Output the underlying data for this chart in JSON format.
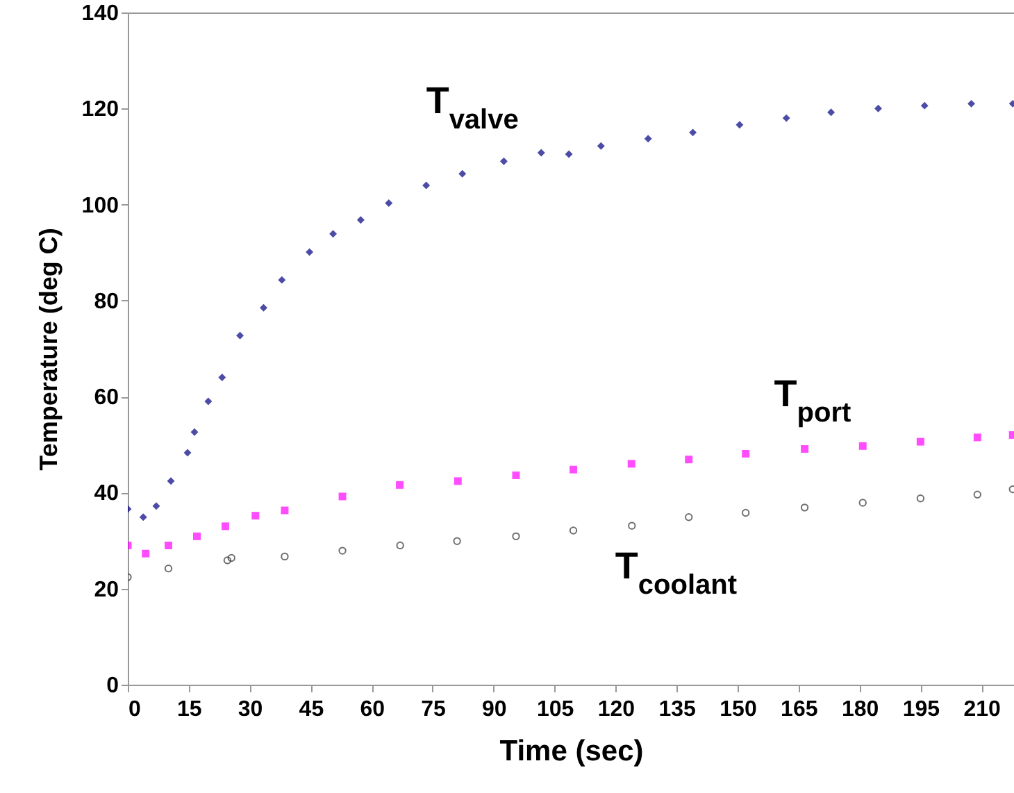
{
  "chart_data": {
    "type": "scatter",
    "xlabel": "Time (sec)",
    "ylabel": "Temperature (deg C)",
    "xlim": [
      0,
      218
    ],
    "xticks": [
      0,
      15,
      30,
      45,
      60,
      75,
      90,
      105,
      120,
      135,
      150,
      165,
      180,
      195,
      210
    ],
    "ylim": [
      0,
      140
    ],
    "yticks": [
      0,
      20,
      40,
      60,
      80,
      100,
      120,
      140
    ],
    "grid": false,
    "series": [
      {
        "name": "T$_{valve}$",
        "color": "#000080",
        "marker": "diamond",
        "x": [
          0,
          3.8,
          7,
          10.6,
          14.7,
          16.4,
          19.8,
          23.2,
          27.6,
          33.4,
          37.9,
          44.7,
          50.5,
          57.3,
          64.2,
          73.4,
          82.3,
          92.5,
          101.7,
          108.5,
          116.4,
          128,
          139,
          150.5,
          162,
          173,
          184.6,
          196,
          207.5,
          217.7
        ],
        "values": [
          36.6,
          34.9,
          37.2,
          42.4,
          48.3,
          52.6,
          59,
          64,
          72.7,
          78.5,
          84.3,
          90.1,
          93.9,
          96.8,
          100.3,
          104,
          106.4,
          109,
          110.8,
          110.5,
          112.2,
          113.7,
          115,
          116.6,
          118,
          119.2,
          120,
          120.6,
          121,
          121
        ]
      },
      {
        "name": "T$_{port}$",
        "color": "#ff00ff",
        "marker": "square",
        "x": [
          0,
          4.4,
          10,
          17,
          24,
          31.4,
          38.6,
          52.8,
          66.9,
          81.2,
          95.5,
          109.6,
          123.9,
          138,
          152,
          166.5,
          180.8,
          195,
          209,
          217.7
        ],
        "values": [
          29,
          27.3,
          29,
          30.9,
          33,
          35.2,
          36.3,
          39.2,
          41.6,
          42.4,
          43.6,
          44.8,
          46,
          46.9,
          48.1,
          49.1,
          49.7,
          50.6,
          51.5,
          52
        ]
      },
      {
        "name": "T$_{coolant}$",
        "color": "#333333",
        "marker": "circle",
        "x": [
          0,
          10,
          24.5,
          25.5,
          38.6,
          52.8,
          67,
          81,
          95.5,
          109.6,
          124,
          138,
          152,
          166.5,
          180.8,
          195,
          209,
          217.7
        ],
        "values": [
          22.4,
          24.2,
          25.9,
          26.4,
          26.7,
          27.9,
          29,
          29.9,
          30.9,
          32.1,
          33.1,
          34.9,
          35.8,
          36.9,
          37.9,
          38.8,
          39.6,
          40.7
        ]
      }
    ]
  }
}
